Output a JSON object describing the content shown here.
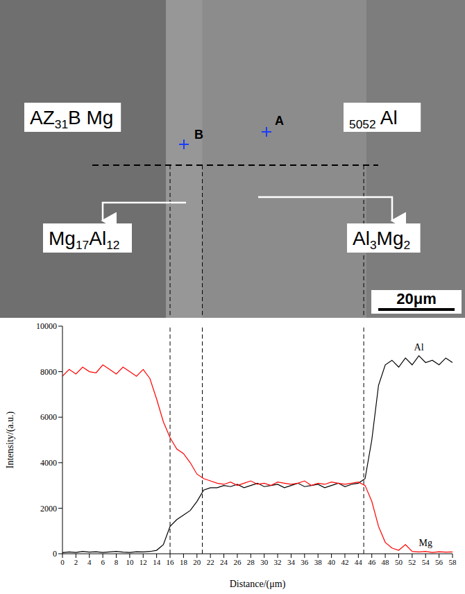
{
  "image": {
    "region_labels": [
      "AZ31B Mg",
      "5052 Al"
    ],
    "phase_labels": [
      "Mg17Al12",
      "Al3Mg2"
    ],
    "points": [
      "A",
      "B"
    ],
    "scale_bar": "20μm"
  },
  "chart_data": {
    "type": "line",
    "xlabel": "Distance/(μm)",
    "ylabel": "Intensity/(a.u.)",
    "x": [
      0,
      1,
      2,
      3,
      4,
      5,
      6,
      7,
      8,
      9,
      10,
      11,
      12,
      13,
      14,
      15,
      16,
      17,
      18,
      19,
      20,
      21,
      22,
      23,
      24,
      25,
      26,
      27,
      28,
      29,
      30,
      31,
      32,
      33,
      34,
      35,
      36,
      37,
      38,
      39,
      40,
      41,
      42,
      43,
      44,
      45,
      46,
      47,
      48,
      49,
      50,
      51,
      52,
      53,
      54,
      55,
      56,
      57,
      58
    ],
    "series": [
      {
        "name": "Al",
        "color": "#000000",
        "values": [
          50,
          80,
          60,
          100,
          70,
          90,
          60,
          80,
          100,
          70,
          60,
          90,
          80,
          100,
          150,
          400,
          1200,
          1500,
          1700,
          1900,
          2300,
          2800,
          2900,
          2900,
          3000,
          2950,
          3050,
          2900,
          3000,
          3100,
          2950,
          3000,
          3050,
          2900,
          3000,
          3100,
          2950,
          3000,
          3050,
          2900,
          3000,
          3100,
          2950,
          3050,
          3100,
          3300,
          5000,
          7400,
          8300,
          8500,
          8200,
          8600,
          8300,
          8700,
          8400,
          8500,
          8300,
          8600,
          8400
        ]
      },
      {
        "name": "Mg",
        "color": "#ff0000",
        "values": [
          7800,
          8100,
          7900,
          8200,
          8000,
          7950,
          8300,
          8100,
          7900,
          8200,
          8000,
          7800,
          8100,
          7700,
          6800,
          5800,
          5100,
          4600,
          4400,
          4000,
          3500,
          3300,
          3200,
          3100,
          3050,
          3150,
          3000,
          3100,
          3200,
          3050,
          3100,
          3000,
          3150,
          3100,
          3050,
          3100,
          3200,
          3000,
          3100,
          3050,
          3150,
          3100,
          3050,
          3100,
          3150,
          3000,
          2300,
          1200,
          500,
          250,
          150,
          400,
          100,
          80,
          100,
          60,
          90,
          70,
          80
        ]
      }
    ],
    "xlim": [
      0,
      58
    ],
    "xticks": [
      0,
      2,
      4,
      6,
      8,
      10,
      12,
      14,
      16,
      18,
      20,
      22,
      24,
      26,
      28,
      30,
      32,
      34,
      36,
      38,
      40,
      42,
      44,
      46,
      48,
      50,
      52,
      54,
      56,
      58
    ],
    "ylim": [
      0,
      10000
    ],
    "yticks": [
      0,
      2000,
      4000,
      6000,
      8000,
      10000
    ],
    "boundaries": [
      16,
      20.8,
      44.8
    ],
    "grid": false
  }
}
